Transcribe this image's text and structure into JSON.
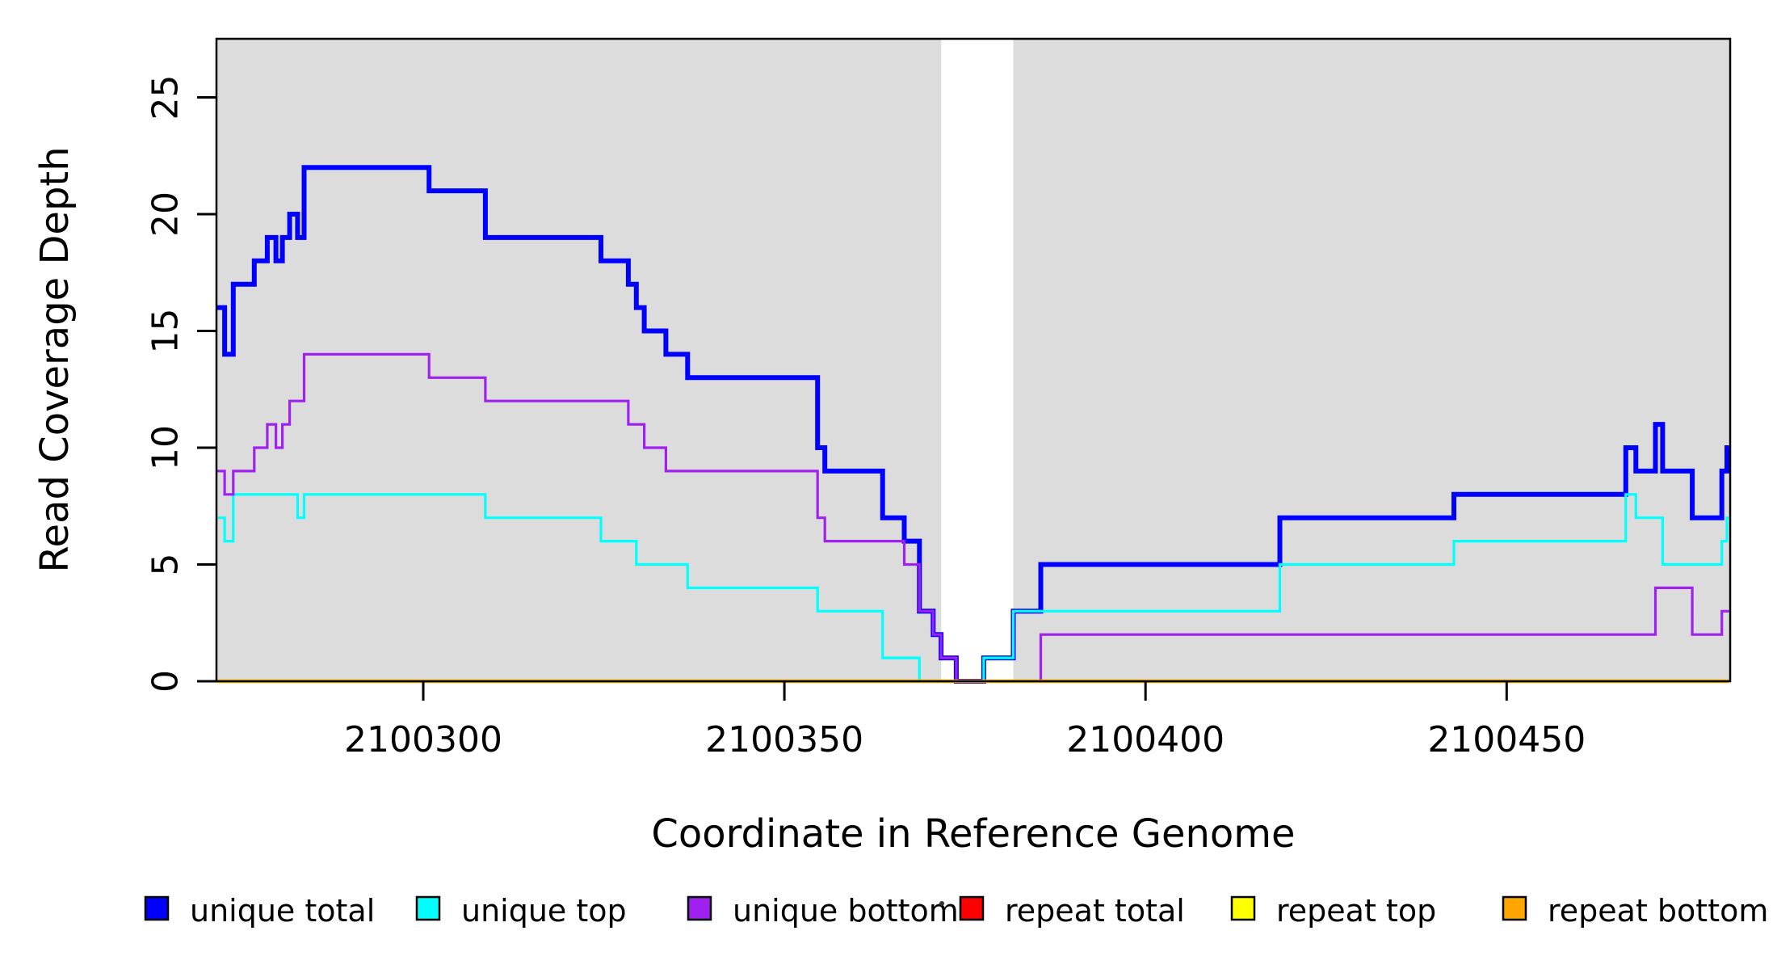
{
  "figure": {
    "x_axis_title": "Coordinate in Reference Genome",
    "y_axis_title": "Read Coverage Depth"
  },
  "chart_data": {
    "type": "line",
    "subtype": "step-coverage",
    "title": "",
    "xlabel": "Coordinate in Reference Genome",
    "ylabel": "Read Coverage Depth",
    "xlim": [
      2100271.4,
      2100480.8
    ],
    "ylim": [
      0,
      27.5
    ],
    "x_ticks": [
      2100300,
      2100350,
      2100400,
      2100450
    ],
    "y_ticks": [
      0,
      5,
      10,
      15,
      20,
      25
    ],
    "grid": false,
    "legend_position": "bottom",
    "plot_background": "#ffffff",
    "shading": {
      "color": "#DCDCDC",
      "regions": [
        [
          2100271.4,
          2100371.7
        ],
        [
          2100381.7,
          2100480.8
        ]
      ]
    },
    "series": [
      {
        "name": "unique total",
        "color": "#0000FF",
        "line_width": 6,
        "steps": [
          [
            2100271.4,
            16
          ],
          [
            2100272.5,
            14
          ],
          [
            2100273.7,
            17
          ],
          [
            2100276.6,
            18
          ],
          [
            2100278.4,
            19
          ],
          [
            2100279.6,
            18
          ],
          [
            2100280.5,
            19
          ],
          [
            2100281.5,
            20
          ],
          [
            2100282.6,
            19
          ],
          [
            2100283.5,
            22
          ],
          [
            2100300.8,
            21
          ],
          [
            2100308.6,
            19
          ],
          [
            2100324.6,
            18
          ],
          [
            2100328.4,
            17
          ],
          [
            2100329.5,
            16
          ],
          [
            2100330.6,
            15
          ],
          [
            2100333.6,
            14
          ],
          [
            2100336.6,
            13
          ],
          [
            2100354.6,
            10
          ],
          [
            2100355.6,
            9
          ],
          [
            2100363.6,
            7
          ],
          [
            2100366.6,
            6
          ],
          [
            2100368.7,
            3
          ],
          [
            2100370.6,
            2
          ],
          [
            2100371.7,
            1
          ],
          [
            2100373.8,
            0
          ],
          [
            2100377.6,
            1
          ],
          [
            2100381.7,
            3
          ],
          [
            2100385.5,
            5
          ],
          [
            2100418.6,
            7
          ],
          [
            2100442.7,
            8
          ],
          [
            2100466.5,
            10
          ],
          [
            2100467.9,
            9
          ],
          [
            2100470.6,
            11
          ],
          [
            2100471.6,
            9
          ],
          [
            2100475.7,
            7
          ],
          [
            2100479.8,
            9
          ],
          [
            2100480.5,
            10
          ]
        ]
      },
      {
        "name": "unique top",
        "color": "#00FFFF",
        "line_width": 3.2,
        "steps": [
          [
            2100271.4,
            7
          ],
          [
            2100272.5,
            6
          ],
          [
            2100273.7,
            8
          ],
          [
            2100282.6,
            7
          ],
          [
            2100283.5,
            8
          ],
          [
            2100308.6,
            7
          ],
          [
            2100324.6,
            6
          ],
          [
            2100329.5,
            5
          ],
          [
            2100336.6,
            4
          ],
          [
            2100354.6,
            3
          ],
          [
            2100363.6,
            1
          ],
          [
            2100368.7,
            0
          ],
          [
            2100377.6,
            1
          ],
          [
            2100381.7,
            3
          ],
          [
            2100418.6,
            5
          ],
          [
            2100442.7,
            6
          ],
          [
            2100466.5,
            8
          ],
          [
            2100467.9,
            7
          ],
          [
            2100471.6,
            5
          ],
          [
            2100479.8,
            6
          ],
          [
            2100480.5,
            7
          ]
        ]
      },
      {
        "name": "unique bottom",
        "color": "#A020F0",
        "line_width": 3.2,
        "steps": [
          [
            2100271.4,
            9
          ],
          [
            2100272.5,
            8
          ],
          [
            2100273.7,
            9
          ],
          [
            2100276.6,
            10
          ],
          [
            2100278.4,
            11
          ],
          [
            2100279.6,
            10
          ],
          [
            2100280.5,
            11
          ],
          [
            2100281.5,
            12
          ],
          [
            2100283.5,
            14
          ],
          [
            2100300.8,
            13
          ],
          [
            2100308.6,
            12
          ],
          [
            2100328.4,
            11
          ],
          [
            2100330.6,
            10
          ],
          [
            2100333.6,
            9
          ],
          [
            2100354.6,
            7
          ],
          [
            2100355.6,
            6
          ],
          [
            2100366.6,
            5
          ],
          [
            2100368.7,
            3
          ],
          [
            2100370.6,
            2
          ],
          [
            2100371.7,
            1
          ],
          [
            2100373.8,
            0
          ],
          [
            2100385.5,
            2
          ],
          [
            2100470.6,
            4
          ],
          [
            2100475.7,
            2
          ],
          [
            2100479.8,
            3
          ]
        ]
      },
      {
        "name": "repeat total",
        "color": "#FF0000",
        "line_width": 3.2,
        "steps": [
          [
            2100271.4,
            0
          ]
        ]
      },
      {
        "name": "repeat top",
        "color": "#FFFF00",
        "line_width": 3.2,
        "steps": [
          [
            2100271.4,
            0
          ]
        ]
      },
      {
        "name": "repeat bottom",
        "color": "#FFA500",
        "line_width": 4.5,
        "steps": [
          [
            2100271.4,
            0
          ]
        ]
      }
    ]
  },
  "legend": {
    "items": [
      {
        "label": "unique total",
        "color": "#0000FF"
      },
      {
        "label": "unique top",
        "color": "#00FFFF"
      },
      {
        "label": "unique bottom",
        "color": "#A020F0"
      },
      {
        "label": "repeat total",
        "color": "#FF0000"
      },
      {
        "label": "repeat top",
        "color": "#FFFF00"
      },
      {
        "label": "repeat bottom",
        "color": "#FFA500"
      }
    ],
    "stray_mark": "."
  }
}
